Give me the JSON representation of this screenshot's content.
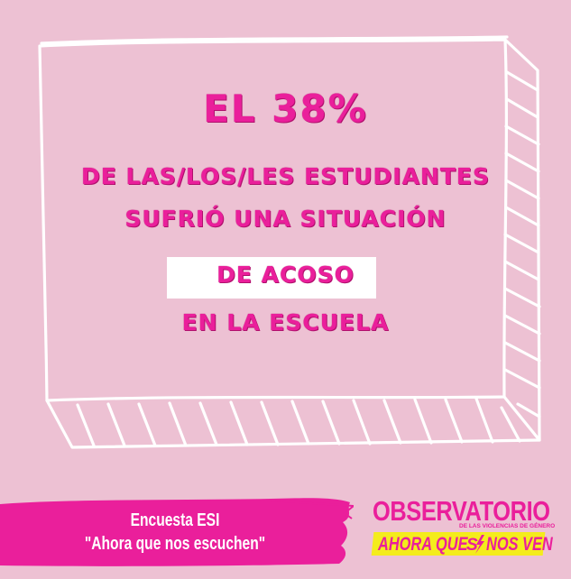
{
  "colors": {
    "background": "#edc1d3",
    "accent": "#ea1f9b",
    "highlight_box": "#ffffff",
    "logo_strip": "#f4ec1c"
  },
  "headline": {
    "line1": "EL 38%",
    "line2": "DE LAS/LOS/LES ESTUDIANTES",
    "line3": "SUFRIÓ UNA SITUACIÓN",
    "line4": "DE ACOSO",
    "line5": "EN LA ESCUELA"
  },
  "survey": {
    "line1": "Encuesta ESI",
    "line2": "\"Ahora que nos escuchen\""
  },
  "logo": {
    "title": "OBSERVATORIO",
    "subtitle": "DE LAS VIOLENCIAS DE GÉNERO",
    "tagline_left": "AHORA QUE",
    "tagline_mid": "SÍ",
    "tagline_right": "NOS VEN"
  },
  "icons": [
    "hand-drawn-box-frame",
    "brush-stroke-banner",
    "lightning-bolt-icon"
  ]
}
